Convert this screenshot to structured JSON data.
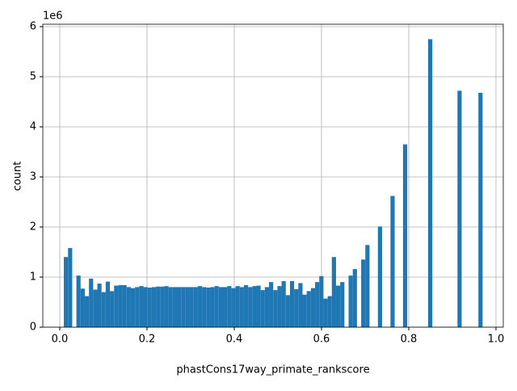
{
  "chart_data": {
    "type": "histogram",
    "xlabel": "phastCons17way_primate_rankscore",
    "ylabel": "count",
    "y_offset_label": "1e6",
    "bins": [
      0.0093,
      0.0189,
      0.0285,
      0.0381,
      0.0477,
      0.0573,
      0.0669,
      0.0765,
      0.0861,
      0.0957,
      0.1053,
      0.1149,
      0.1245,
      0.1341,
      0.1437,
      0.1533,
      0.1629,
      0.1725,
      0.1821,
      0.1917,
      0.2013,
      0.2109,
      0.2205,
      0.2301,
      0.2397,
      0.2493,
      0.2589,
      0.2685,
      0.2781,
      0.2877,
      0.2973,
      0.3069,
      0.3165,
      0.3261,
      0.3357,
      0.3453,
      0.3549,
      0.3645,
      0.3741,
      0.3837,
      0.3933,
      0.4029,
      0.4125,
      0.4221,
      0.4317,
      0.4413,
      0.4509,
      0.4605,
      0.4701,
      0.4797,
      0.4893,
      0.4989,
      0.5085,
      0.5181,
      0.5277,
      0.5373,
      0.5469,
      0.5565,
      0.5661,
      0.5757,
      0.5853,
      0.5949,
      0.6045,
      0.6141,
      0.6237,
      0.6333,
      0.6429,
      0.6525,
      0.6621,
      0.6717,
      0.6813,
      0.6909,
      0.7005,
      0.7101,
      0.7197,
      0.7293,
      0.7389,
      0.7485,
      0.7581,
      0.7677,
      0.7773,
      0.7869,
      0.7965,
      0.8061,
      0.8157,
      0.8253,
      0.8349,
      0.8445,
      0.8541,
      0.8637,
      0.8733,
      0.8829,
      0.8925,
      0.9021,
      0.9117,
      0.9213,
      0.9309,
      0.9405,
      0.9501,
      0.9597,
      0.9693
    ],
    "values": [
      1400000,
      1580000,
      0,
      1030000,
      770000,
      620000,
      970000,
      750000,
      870000,
      700000,
      910000,
      720000,
      830000,
      840000,
      840000,
      800000,
      780000,
      800000,
      820000,
      800000,
      790000,
      800000,
      810000,
      810000,
      820000,
      800000,
      800000,
      800000,
      800000,
      800000,
      800000,
      800000,
      820000,
      800000,
      790000,
      800000,
      820000,
      800000,
      800000,
      820000,
      780000,
      820000,
      800000,
      840000,
      800000,
      820000,
      830000,
      740000,
      800000,
      900000,
      740000,
      820000,
      920000,
      640000,
      920000,
      760000,
      880000,
      650000,
      720000,
      780000,
      900000,
      1020000,
      570000,
      620000,
      1400000,
      830000,
      900000,
      0,
      1030000,
      1160000,
      0,
      1350000,
      1640000,
      0,
      0,
      2010000,
      0,
      0,
      2620000,
      0,
      0,
      3650000,
      0,
      0,
      0,
      0,
      0,
      5750000,
      0,
      0,
      0,
      0,
      0,
      0,
      4720000,
      0,
      0,
      0,
      0,
      4680000
    ],
    "color": "#1f77b4",
    "xlim": [
      -0.0389,
      1.0167
    ],
    "ylim": [
      0,
      6048000
    ],
    "xticks": [
      {
        "value": 0,
        "label": "0.0"
      },
      0.2,
      0.4,
      0.6,
      0.8,
      {
        "value": 1,
        "label": "1.0"
      }
    ],
    "yticks": [
      0,
      {
        "value": 1000000,
        "label": "1"
      },
      {
        "value": 2000000,
        "label": "2"
      },
      {
        "value": 3000000,
        "label": "3"
      },
      {
        "value": 4000000,
        "label": "4"
      },
      {
        "value": 5000000,
        "label": "5"
      },
      {
        "value": 6000000,
        "label": "6"
      }
    ],
    "grid": true
  }
}
